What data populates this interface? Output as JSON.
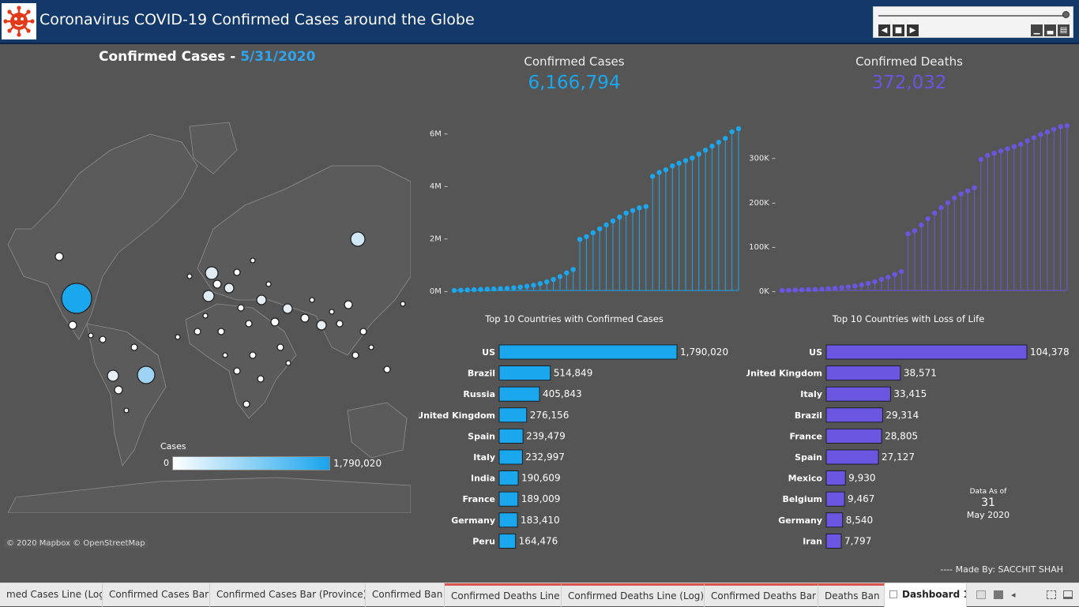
{
  "header": {
    "title": "Coronavirus COVID-19 Confirmed Cases around the Globe",
    "logo_icon": "virus-icon"
  },
  "map": {
    "title_prefix": "Confirmed Cases - ",
    "title_date": "5/31/2020",
    "legend_title": "Cases",
    "legend_min": "0",
    "legend_max": "1,790,020",
    "attribution": "© 2020 Mapbox © OpenStreetMap"
  },
  "kpi": {
    "cases_label": "Confirmed Cases",
    "cases_value": "6,166,794",
    "deaths_label": "Confirmed Deaths",
    "deaths_value": "372,032"
  },
  "colors": {
    "cases": "#1aa7ee",
    "deaths": "#6a56e0",
    "header": "#13386a"
  },
  "chart_data": [
    {
      "type": "line",
      "name": "confirmed-cases-lollipop",
      "y_ticks": [
        "0M",
        "2M",
        "4M",
        "6M"
      ],
      "ylim": [
        0,
        6500000
      ],
      "values": [
        0,
        10000,
        20000,
        30000,
        40000,
        50000,
        60000,
        70000,
        80000,
        100000,
        130000,
        160000,
        200000,
        260000,
        330000,
        420000,
        530000,
        670000,
        800000,
        1950000,
        2050000,
        2200000,
        2350000,
        2500000,
        2650000,
        2800000,
        2950000,
        3050000,
        3150000,
        3200000,
        4350000,
        4500000,
        4600000,
        4750000,
        4850000,
        4950000,
        5050000,
        5200000,
        5350000,
        5500000,
        5650000,
        5800000,
        6050000,
        6166794
      ]
    },
    {
      "type": "line",
      "name": "confirmed-deaths-lollipop",
      "y_ticks": [
        "0K",
        "100K",
        "200K",
        "300K"
      ],
      "ylim": [
        0,
        385000
      ],
      "values": [
        0,
        500,
        1000,
        1500,
        2000,
        2500,
        3000,
        4000,
        5000,
        6500,
        8000,
        10000,
        13000,
        16000,
        20000,
        25000,
        30000,
        36000,
        43000,
        128000,
        135000,
        148000,
        162000,
        175000,
        187000,
        198000,
        209000,
        218000,
        225000,
        232000,
        296000,
        305000,
        310000,
        315000,
        320000,
        325000,
        330000,
        338000,
        345000,
        352000,
        358000,
        364000,
        370000,
        372032
      ]
    },
    {
      "type": "bar",
      "title": "Top 10 Countries with Confirmed Cases",
      "categories": [
        "US",
        "Brazil",
        "Russia",
        "United Kingdom",
        "Spain",
        "Italy",
        "India",
        "France",
        "Germany",
        "Peru"
      ],
      "values": [
        1790020,
        514849,
        405843,
        276156,
        239479,
        232997,
        190609,
        189009,
        183410,
        164476
      ],
      "labels": [
        "1,790,020",
        "514,849",
        "405,843",
        "276,156",
        "239,479",
        "232,997",
        "190,609",
        "189,009",
        "183,410",
        "164,476"
      ]
    },
    {
      "type": "bar",
      "title": "Top 10 Countries with Loss of Life",
      "categories": [
        "US",
        "United Kingdom",
        "Italy",
        "Brazil",
        "France",
        "Spain",
        "Mexico",
        "Belgium",
        "Germany",
        "Iran"
      ],
      "values": [
        104378,
        38571,
        33415,
        29314,
        28805,
        27127,
        9930,
        9467,
        8540,
        7797
      ],
      "labels": [
        "104,378",
        "38,571",
        "33,415",
        "29,314",
        "28,805",
        "27,127",
        "9,930",
        "9,467",
        "8,540",
        "7,797"
      ]
    }
  ],
  "data_as_of": {
    "label": "Data As of",
    "day": "31",
    "month": "May 2020"
  },
  "footer": {
    "made_by": "----  Made By: ꓢACCHIT ꓢHAH"
  },
  "tabs": [
    {
      "label": "med Cases Line (Log)"
    },
    {
      "label": "Confirmed Cases Bar"
    },
    {
      "label": "Confirmed Cases Bar (Province)"
    },
    {
      "label": "Confirmed Ban"
    },
    {
      "label": "Confirmed Deaths Line"
    },
    {
      "label": "Confirmed Deaths Line (Log)"
    },
    {
      "label": "Confirmed Deaths Bar"
    },
    {
      "label": "Deaths Ban"
    },
    {
      "label": "Dashboard 1"
    }
  ]
}
